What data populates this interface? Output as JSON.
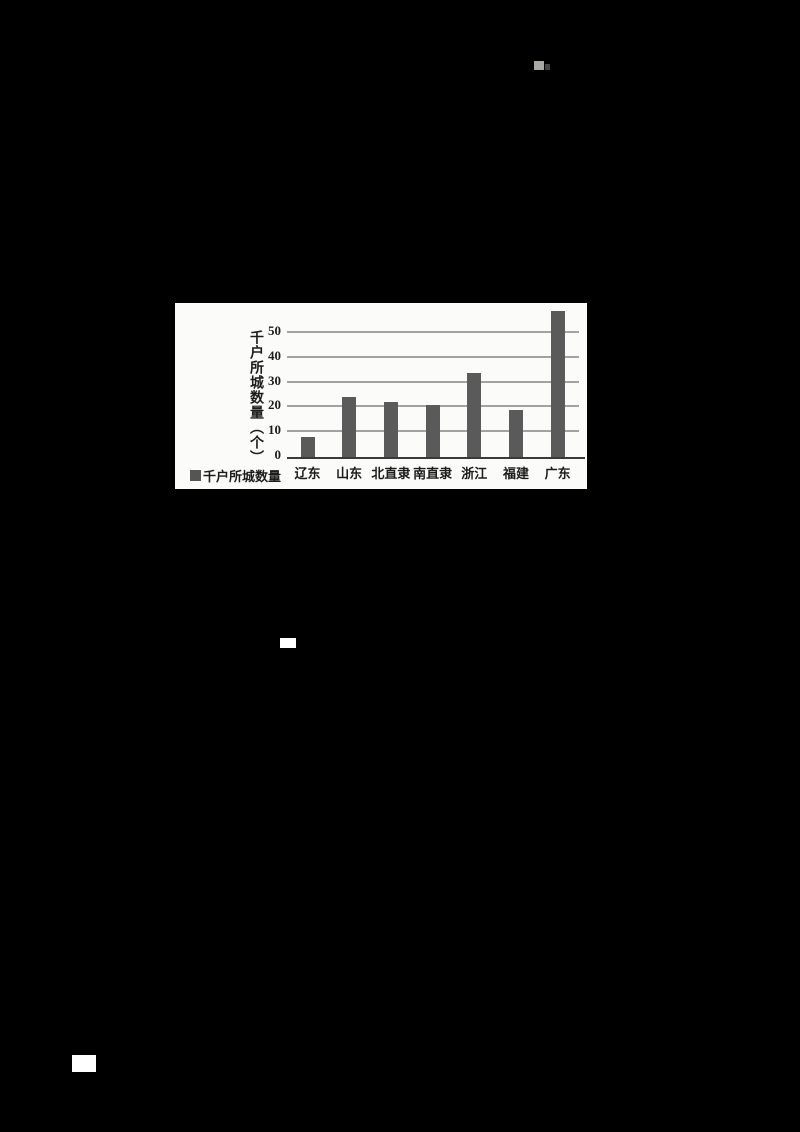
{
  "page": {
    "background_color": "#000000"
  },
  "chart_data": {
    "type": "bar",
    "title": "",
    "xlabel": "",
    "ylabel": "千户所城数量（个）",
    "legend_entries": [
      "千户所城数量"
    ],
    "legend_position": "bottom-left",
    "categories": [
      "辽东",
      "山东",
      "北直隶",
      "南直隶",
      "浙江",
      "福建",
      "广东"
    ],
    "values": [
      8,
      24,
      22,
      21,
      34,
      19,
      59
    ],
    "yticks": [
      0,
      10,
      20,
      30,
      40,
      50
    ],
    "ylim": [
      0,
      62
    ],
    "grid": true,
    "bar_color": "#5a5a5a",
    "panel_background": "#fbfbfa",
    "gridline_color": "#a2a2a2",
    "text_color": "#1c1c1c"
  }
}
